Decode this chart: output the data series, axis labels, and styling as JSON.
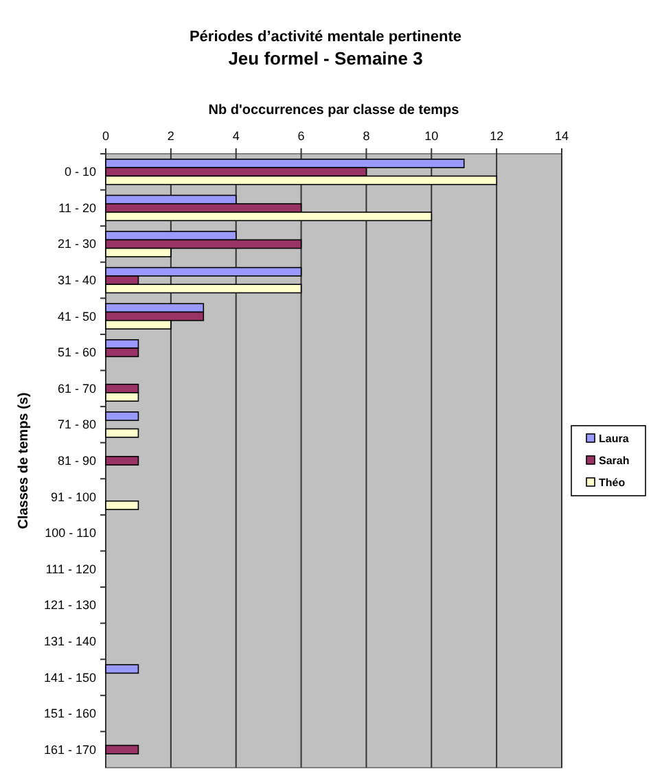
{
  "chart_data": {
    "type": "bar",
    "orientation": "horizontal",
    "title": "Périodes d’activité mentale pertinente",
    "subtitle": "Jeu formel - Semaine 3",
    "xlabel": "Nb d'occurrences par classe de temps",
    "ylabel": "Classes de temps (s)",
    "categories": [
      "0 - 10",
      "11 - 20",
      "21 - 30",
      "31 - 40",
      "41 - 50",
      "51 - 60",
      "61 - 70",
      "71 - 80",
      "81 - 90",
      "91 - 100",
      "100 - 110",
      "111 - 120",
      "121 - 130",
      "131 - 140",
      "141 - 150",
      "151 - 160",
      "161 - 170"
    ],
    "series": [
      {
        "name": "Laura",
        "color": "#9999ff",
        "values": [
          11,
          4,
          4,
          6,
          3,
          1,
          0,
          1,
          0,
          0,
          0,
          0,
          0,
          0,
          1,
          0,
          0
        ]
      },
      {
        "name": "Sarah",
        "color": "#993366",
        "values": [
          8,
          6,
          6,
          1,
          3,
          1,
          1,
          0,
          1,
          0,
          0,
          0,
          0,
          0,
          0,
          0,
          1
        ]
      },
      {
        "name": "Théo",
        "color": "#ffffcc",
        "values": [
          12,
          10,
          2,
          6,
          2,
          0,
          1,
          1,
          0,
          1,
          0,
          0,
          0,
          0,
          0,
          0,
          0
        ]
      }
    ],
    "xlim": [
      0,
      14
    ],
    "xticks": [
      0,
      2,
      4,
      6,
      8,
      10,
      12,
      14
    ],
    "grid": "x",
    "legend": "right"
  }
}
